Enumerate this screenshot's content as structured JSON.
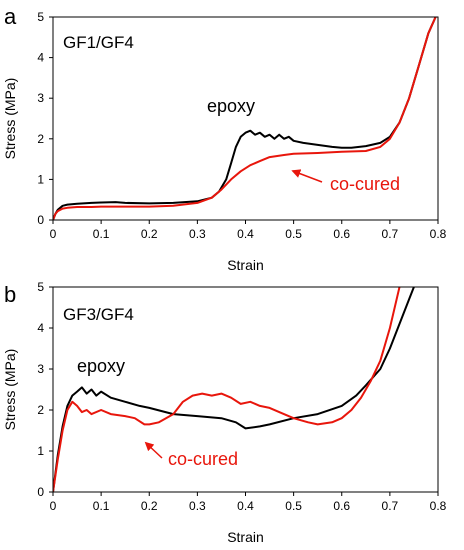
{
  "chart_data": [
    {
      "panel_label": "a",
      "type": "line",
      "box_label": "GF1/GF4",
      "xlabel": "Strain",
      "ylabel": "Stress (MPa)",
      "xlim": [
        0,
        0.8
      ],
      "ylim": [
        0,
        5
      ],
      "xticks": [
        "0",
        "0.1",
        "0.2",
        "0.3",
        "0.4",
        "0.5",
        "0.6",
        "0.7",
        "0.8"
      ],
      "yticks": [
        "0",
        "1",
        "2",
        "3",
        "4",
        "5"
      ],
      "grid": false,
      "colors": {
        "epoxy": "#000000",
        "co-cured": "#e8160c"
      },
      "series": [
        {
          "name": "epoxy",
          "x": [
            0,
            0.005,
            0.01,
            0.015,
            0.02,
            0.03,
            0.05,
            0.08,
            0.1,
            0.13,
            0.15,
            0.2,
            0.25,
            0.3,
            0.33,
            0.345,
            0.36,
            0.37,
            0.38,
            0.39,
            0.4,
            0.41,
            0.42,
            0.43,
            0.44,
            0.45,
            0.46,
            0.47,
            0.48,
            0.49,
            0.5,
            0.52,
            0.55,
            0.58,
            0.6,
            0.62,
            0.65,
            0.68,
            0.7,
            0.72,
            0.74,
            0.76,
            0.78,
            0.795
          ],
          "y": [
            0,
            0.15,
            0.25,
            0.3,
            0.35,
            0.38,
            0.4,
            0.42,
            0.43,
            0.44,
            0.42,
            0.41,
            0.42,
            0.46,
            0.55,
            0.7,
            1.0,
            1.4,
            1.8,
            2.05,
            2.15,
            2.2,
            2.1,
            2.15,
            2.05,
            2.1,
            2.0,
            2.1,
            2.0,
            2.05,
            1.95,
            1.9,
            1.85,
            1.8,
            1.78,
            1.78,
            1.82,
            1.9,
            2.05,
            2.4,
            3.0,
            3.8,
            4.6,
            5.0
          ]
        },
        {
          "name": "co-cured",
          "x": [
            0,
            0.005,
            0.01,
            0.02,
            0.03,
            0.05,
            0.08,
            0.1,
            0.15,
            0.2,
            0.25,
            0.3,
            0.33,
            0.35,
            0.37,
            0.39,
            0.41,
            0.43,
            0.45,
            0.48,
            0.5,
            0.55,
            0.6,
            0.65,
            0.68,
            0.7,
            0.72,
            0.74,
            0.76,
            0.78,
            0.795
          ],
          "y": [
            0,
            0.15,
            0.22,
            0.28,
            0.3,
            0.32,
            0.32,
            0.33,
            0.33,
            0.33,
            0.35,
            0.42,
            0.55,
            0.75,
            1.0,
            1.2,
            1.35,
            1.45,
            1.55,
            1.6,
            1.63,
            1.65,
            1.68,
            1.7,
            1.8,
            2.0,
            2.4,
            3.0,
            3.8,
            4.6,
            5.0
          ]
        }
      ],
      "annotations": [
        {
          "text": "epoxy",
          "color": "#000000"
        },
        {
          "text": "co-cured",
          "color": "#e8160c"
        }
      ]
    },
    {
      "panel_label": "b",
      "type": "line",
      "box_label": "GF3/GF4",
      "xlabel": "Strain",
      "ylabel": "Stress (MPa)",
      "xlim": [
        0,
        0.8
      ],
      "ylim": [
        0,
        5
      ],
      "xticks": [
        "0",
        "0.1",
        "0.2",
        "0.3",
        "0.4",
        "0.5",
        "0.6",
        "0.7",
        "0.8"
      ],
      "yticks": [
        "0",
        "1",
        "2",
        "3",
        "4",
        "5"
      ],
      "grid": false,
      "colors": {
        "epoxy": "#000000",
        "co-cured": "#e8160c"
      },
      "series": [
        {
          "name": "epoxy",
          "x": [
            0,
            0.01,
            0.02,
            0.03,
            0.04,
            0.05,
            0.06,
            0.07,
            0.08,
            0.09,
            0.1,
            0.12,
            0.15,
            0.18,
            0.2,
            0.25,
            0.3,
            0.35,
            0.38,
            0.4,
            0.43,
            0.45,
            0.5,
            0.55,
            0.6,
            0.63,
            0.65,
            0.68,
            0.7,
            0.72,
            0.74,
            0.75
          ],
          "y": [
            0,
            0.9,
            1.6,
            2.1,
            2.35,
            2.45,
            2.55,
            2.4,
            2.5,
            2.35,
            2.45,
            2.3,
            2.2,
            2.1,
            2.05,
            1.9,
            1.85,
            1.8,
            1.7,
            1.55,
            1.6,
            1.65,
            1.8,
            1.9,
            2.1,
            2.35,
            2.6,
            3.0,
            3.5,
            4.1,
            4.7,
            5.0
          ]
        },
        {
          "name": "co-cured",
          "x": [
            0,
            0.01,
            0.02,
            0.03,
            0.04,
            0.05,
            0.06,
            0.07,
            0.08,
            0.1,
            0.12,
            0.15,
            0.17,
            0.19,
            0.2,
            0.22,
            0.25,
            0.27,
            0.29,
            0.31,
            0.33,
            0.35,
            0.37,
            0.39,
            0.41,
            0.43,
            0.45,
            0.47,
            0.5,
            0.53,
            0.55,
            0.58,
            0.6,
            0.62,
            0.64,
            0.66,
            0.68,
            0.7,
            0.72
          ],
          "y": [
            0,
            0.8,
            1.5,
            2.0,
            2.2,
            2.1,
            1.95,
            2.0,
            1.9,
            2.0,
            1.9,
            1.85,
            1.8,
            1.65,
            1.65,
            1.7,
            1.9,
            2.2,
            2.35,
            2.4,
            2.35,
            2.4,
            2.3,
            2.15,
            2.2,
            2.1,
            2.05,
            1.95,
            1.8,
            1.7,
            1.65,
            1.7,
            1.8,
            2.0,
            2.3,
            2.7,
            3.2,
            4.0,
            5.0
          ]
        }
      ],
      "annotations": [
        {
          "text": "epoxy",
          "color": "#000000"
        },
        {
          "text": "co-cured",
          "color": "#e8160c"
        }
      ]
    }
  ]
}
